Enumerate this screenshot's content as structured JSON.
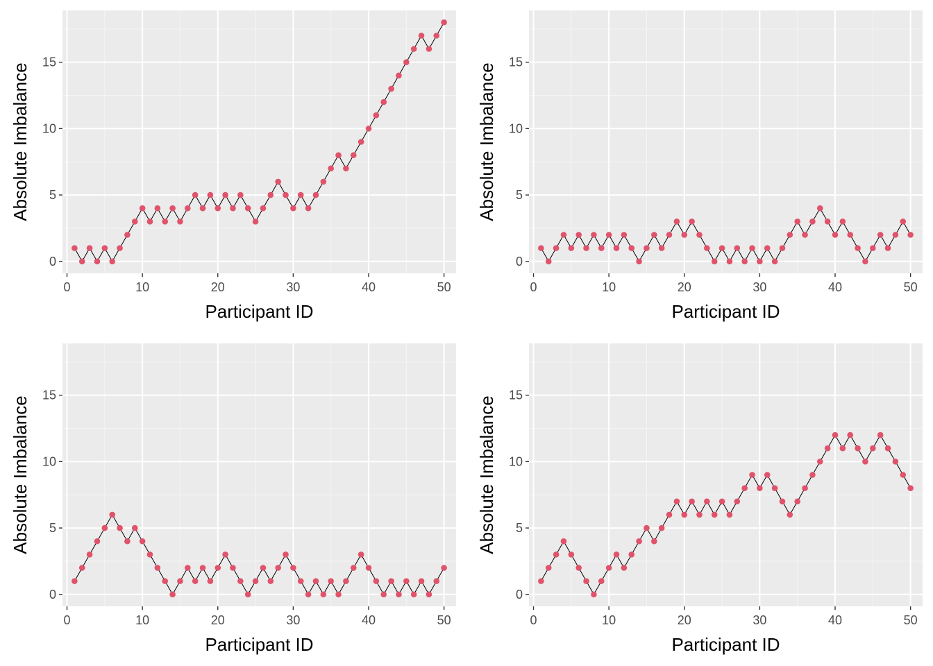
{
  "chart_data": [
    {
      "type": "line",
      "xlabel": "Participant ID",
      "ylabel": "Absolute Imbalance",
      "xlim": [
        -0.6,
        51.6
      ],
      "ylim": [
        -0.9,
        18.9
      ],
      "x_ticks": [
        0,
        10,
        20,
        30,
        40,
        50
      ],
      "y_ticks": [
        0,
        5,
        10,
        15
      ],
      "grid": true,
      "x": [
        1,
        2,
        3,
        4,
        5,
        6,
        7,
        8,
        9,
        10,
        11,
        12,
        13,
        14,
        15,
        16,
        17,
        18,
        19,
        20,
        21,
        22,
        23,
        24,
        25,
        26,
        27,
        28,
        29,
        30,
        31,
        32,
        33,
        34,
        35,
        36,
        37,
        38,
        39,
        40,
        41,
        42,
        43,
        44,
        45,
        46,
        47,
        48,
        49,
        50
      ],
      "values": [
        1,
        0,
        1,
        0,
        1,
        0,
        1,
        2,
        3,
        4,
        3,
        4,
        3,
        4,
        3,
        4,
        5,
        4,
        5,
        4,
        5,
        4,
        5,
        4,
        3,
        4,
        5,
        6,
        5,
        4,
        5,
        4,
        5,
        6,
        7,
        8,
        7,
        8,
        9,
        10,
        11,
        12,
        13,
        14,
        15,
        16,
        17,
        16,
        17,
        18
      ]
    },
    {
      "type": "line",
      "xlabel": "Participant ID",
      "ylabel": "Absolute Imbalance",
      "xlim": [
        -0.6,
        51.6
      ],
      "ylim": [
        -0.9,
        18.9
      ],
      "x_ticks": [
        0,
        10,
        20,
        30,
        40,
        50
      ],
      "y_ticks": [
        0,
        5,
        10,
        15
      ],
      "grid": true,
      "x": [
        1,
        2,
        3,
        4,
        5,
        6,
        7,
        8,
        9,
        10,
        11,
        12,
        13,
        14,
        15,
        16,
        17,
        18,
        19,
        20,
        21,
        22,
        23,
        24,
        25,
        26,
        27,
        28,
        29,
        30,
        31,
        32,
        33,
        34,
        35,
        36,
        37,
        38,
        39,
        40,
        41,
        42,
        43,
        44,
        45,
        46,
        47,
        48,
        49,
        50
      ],
      "values": [
        1,
        0,
        1,
        2,
        1,
        2,
        1,
        2,
        1,
        2,
        1,
        2,
        1,
        0,
        1,
        2,
        1,
        2,
        3,
        2,
        3,
        2,
        1,
        0,
        1,
        0,
        1,
        0,
        1,
        0,
        1,
        0,
        1,
        2,
        3,
        2,
        3,
        4,
        3,
        2,
        3,
        2,
        1,
        0,
        1,
        2,
        1,
        2,
        3,
        2
      ]
    },
    {
      "type": "line",
      "xlabel": "Participant ID",
      "ylabel": "Absolute Imbalance",
      "xlim": [
        -0.6,
        51.6
      ],
      "ylim": [
        -0.9,
        18.9
      ],
      "x_ticks": [
        0,
        10,
        20,
        30,
        40,
        50
      ],
      "y_ticks": [
        0,
        5,
        10,
        15
      ],
      "grid": true,
      "x": [
        1,
        2,
        3,
        4,
        5,
        6,
        7,
        8,
        9,
        10,
        11,
        12,
        13,
        14,
        15,
        16,
        17,
        18,
        19,
        20,
        21,
        22,
        23,
        24,
        25,
        26,
        27,
        28,
        29,
        30,
        31,
        32,
        33,
        34,
        35,
        36,
        37,
        38,
        39,
        40,
        41,
        42,
        43,
        44,
        45,
        46,
        47,
        48,
        49,
        50
      ],
      "values": [
        1,
        2,
        3,
        4,
        5,
        6,
        5,
        4,
        5,
        4,
        3,
        2,
        1,
        0,
        1,
        2,
        1,
        2,
        1,
        2,
        3,
        2,
        1,
        0,
        1,
        2,
        1,
        2,
        3,
        2,
        1,
        0,
        1,
        0,
        1,
        0,
        1,
        2,
        3,
        2,
        1,
        0,
        1,
        0,
        1,
        0,
        1,
        0,
        1,
        2
      ]
    },
    {
      "type": "line",
      "xlabel": "Participant ID",
      "ylabel": "Absolute Imbalance",
      "xlim": [
        -0.6,
        51.6
      ],
      "ylim": [
        -0.9,
        18.9
      ],
      "x_ticks": [
        0,
        10,
        20,
        30,
        40,
        50
      ],
      "y_ticks": [
        0,
        5,
        10,
        15
      ],
      "grid": true,
      "x": [
        1,
        2,
        3,
        4,
        5,
        6,
        7,
        8,
        9,
        10,
        11,
        12,
        13,
        14,
        15,
        16,
        17,
        18,
        19,
        20,
        21,
        22,
        23,
        24,
        25,
        26,
        27,
        28,
        29,
        30,
        31,
        32,
        33,
        34,
        35,
        36,
        37,
        38,
        39,
        40,
        41,
        42,
        43,
        44,
        45,
        46,
        47,
        48,
        49,
        50
      ],
      "values": [
        1,
        2,
        3,
        4,
        3,
        2,
        1,
        0,
        1,
        2,
        3,
        2,
        3,
        4,
        5,
        4,
        5,
        6,
        7,
        6,
        7,
        6,
        7,
        6,
        7,
        6,
        7,
        8,
        9,
        8,
        9,
        8,
        7,
        6,
        7,
        8,
        9,
        10,
        11,
        12,
        11,
        12,
        11,
        10,
        11,
        12,
        11,
        10,
        9,
        8
      ]
    }
  ],
  "colors": {
    "panel_background": "#ebebeb",
    "grid_major": "#ffffff",
    "grid_minor": "#f5f5f5",
    "point": "#df536b",
    "line": "#000000",
    "tick_label": "#4d4d4d",
    "tick_mark": "#333333"
  }
}
